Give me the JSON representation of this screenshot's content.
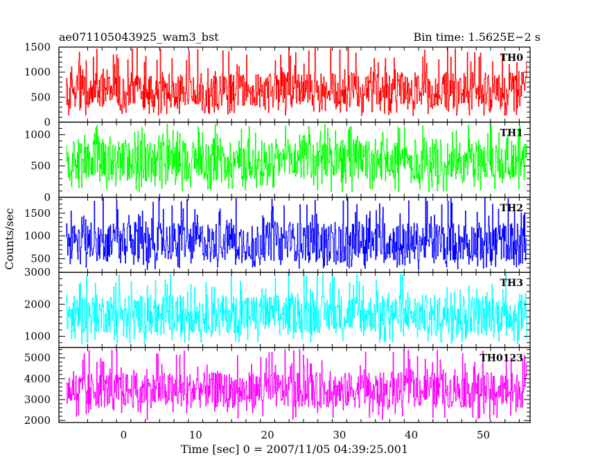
{
  "header": {
    "title": "ae071105043925_wam3_bst",
    "bin_time": "Bin time: 1.5625E−2 s"
  },
  "chart_data": {
    "type": "line",
    "style": "histogram step light curve, dense noise",
    "xlabel": "Time [sec] 0 = 2007/11/05 04:39:25.001",
    "ylabel": "Counts/sec",
    "xlim": [
      -9,
      56.5
    ],
    "x_data_range": [
      -8,
      56
    ],
    "x_ticks": [
      0,
      10,
      20,
      30,
      40,
      50
    ],
    "x_tick_labels": [
      "0",
      "10",
      "20",
      "30",
      "40",
      "50"
    ],
    "bin_time": 0.015625,
    "panels": [
      {
        "name": "TH0",
        "color": "#ff0000",
        "ylim": [
          0,
          1500
        ],
        "yticks": [
          0,
          500,
          1000,
          1500
        ],
        "ytick_labels": [
          "0",
          "500",
          "1000",
          "1500"
        ],
        "mean": 650,
        "band_low": 300,
        "band_high": 1000,
        "min": 130,
        "max": 1500
      },
      {
        "name": "TH1",
        "color": "#00ff00",
        "ylim": [
          0,
          1200
        ],
        "yticks": [
          0,
          500,
          1000
        ],
        "ytick_labels": [
          "0",
          "500",
          "1000"
        ],
        "mean": 600,
        "band_low": 260,
        "band_high": 930,
        "min": 80,
        "max": 1170
      },
      {
        "name": "TH2",
        "color": "#0000ff",
        "ylim": [
          200,
          1850
        ],
        "yticks": [
          500,
          1000,
          1500
        ],
        "ytick_labels": [
          "500",
          "1000",
          "1500"
        ],
        "mean": 850,
        "band_low": 450,
        "band_high": 1300,
        "min": 250,
        "max": 1850
      },
      {
        "name": "TH3",
        "color": "#00ffff",
        "ylim": [
          650,
          3000
        ],
        "yticks": [
          1000,
          2000,
          3000
        ],
        "ytick_labels": [
          "1000",
          "2000",
          "3000"
        ],
        "mean": 1650,
        "band_low": 1100,
        "band_high": 2300,
        "min": 750,
        "max": 3000
      },
      {
        "name": "TH0123",
        "color": "#ff00ff",
        "ylim": [
          1900,
          5500
        ],
        "yticks": [
          2000,
          3000,
          4000,
          5000
        ],
        "ytick_labels": [
          "2000",
          "3000",
          "4000",
          "5000"
        ],
        "mean": 3500,
        "band_low": 2600,
        "band_high": 4300,
        "min": 2000,
        "max": 5400
      }
    ]
  }
}
